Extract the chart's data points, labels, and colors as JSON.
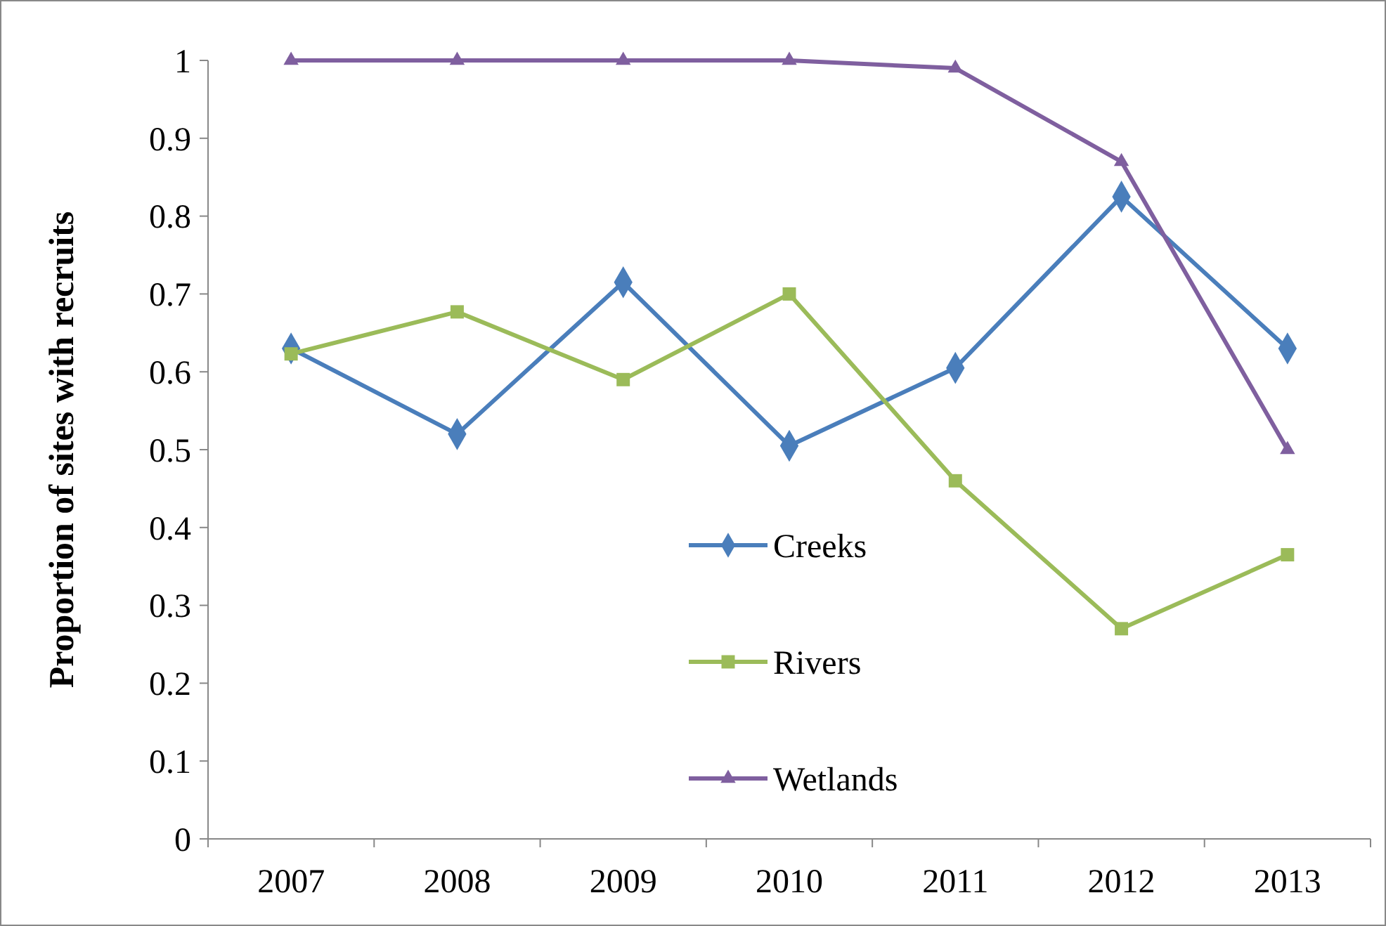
{
  "chart_data": {
    "type": "line",
    "ylabel": "Proportion of sites with recruits",
    "categories": [
      "2007",
      "2008",
      "2009",
      "2010",
      "2011",
      "2012",
      "2013"
    ],
    "ylim": [
      0,
      1
    ],
    "yticks": [
      0,
      0.1,
      0.2,
      0.3,
      0.4,
      0.5,
      0.6,
      0.7,
      0.8,
      0.9,
      1
    ],
    "grid": false,
    "legend": "bottom",
    "line_style": "solid",
    "series": [
      {
        "name": "Creeks",
        "color": "#4a7ebb",
        "marker": "diamond",
        "values": [
          0.63,
          0.52,
          0.715,
          0.505,
          0.605,
          0.825,
          0.63
        ]
      },
      {
        "name": "Rivers",
        "color": "#9bbb59",
        "marker": "square",
        "values": [
          0.623,
          0.677,
          0.59,
          0.7,
          0.46,
          0.27,
          0.365
        ]
      },
      {
        "name": "Wetlands",
        "color": "#7f5f9f",
        "marker": "triangle",
        "values": [
          1,
          1,
          1,
          1,
          0.99,
          0.87,
          0.5
        ]
      }
    ]
  }
}
